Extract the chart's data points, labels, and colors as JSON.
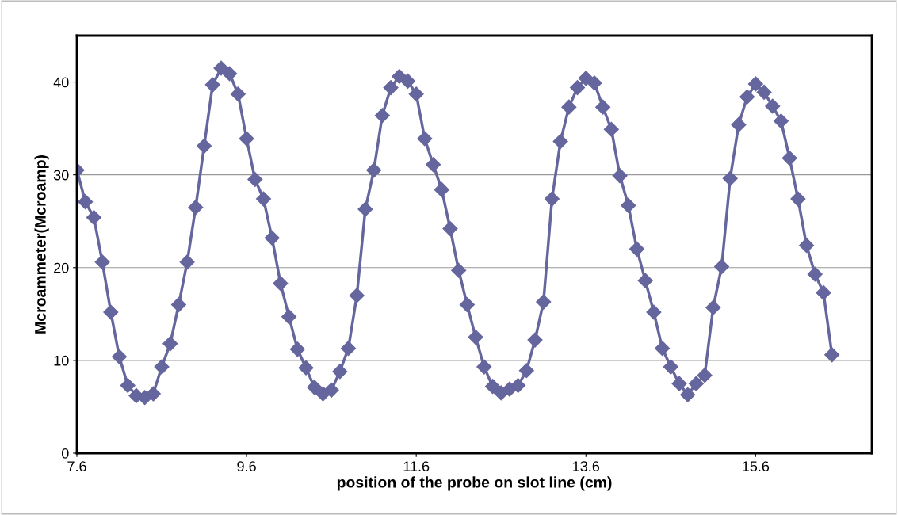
{
  "chart_data": {
    "type": "line",
    "xlabel": "position of the probe on slot line (cm)",
    "ylabel": "Mcroammeter(Mcroamp)",
    "xlim": [
      7.6,
      16.97
    ],
    "xticks": [
      7.6,
      9.6,
      11.6,
      13.6,
      15.6
    ],
    "ylim": [
      0,
      45
    ],
    "yticks": [
      0,
      10,
      20,
      30,
      40
    ],
    "grid": "y",
    "marker": "diamond",
    "line_style": "solid",
    "legend": false,
    "x": [
      7.6,
      7.7,
      7.8,
      7.9,
      8.0,
      8.1,
      8.2,
      8.3,
      8.4,
      8.5,
      8.6,
      8.7,
      8.8,
      8.9,
      9.0,
      9.1,
      9.2,
      9.3,
      9.4,
      9.5,
      9.6,
      9.7,
      9.8,
      9.9,
      10.0,
      10.1,
      10.2,
      10.3,
      10.4,
      10.5,
      10.6,
      10.7,
      10.8,
      10.9,
      11.0,
      11.1,
      11.2,
      11.3,
      11.4,
      11.5,
      11.6,
      11.7,
      11.8,
      11.9,
      12.0,
      12.1,
      12.2,
      12.3,
      12.4,
      12.5,
      12.6,
      12.7,
      12.8,
      12.9,
      13.0,
      13.1,
      13.2,
      13.3,
      13.4,
      13.5,
      13.6,
      13.7,
      13.8,
      13.9,
      14.0,
      14.1,
      14.2,
      14.3,
      14.4,
      14.5,
      14.6,
      14.7,
      14.8,
      14.9,
      15.0,
      15.1,
      15.2,
      15.3,
      15.4,
      15.5,
      15.6,
      15.7,
      15.8,
      15.9,
      16.0,
      16.1,
      16.2,
      16.3,
      16.4,
      16.5
    ],
    "series": [
      {
        "color": "#66669e",
        "values": [
          30.5,
          27.1,
          25.4,
          20.6,
          15.2,
          10.4,
          7.3,
          6.2,
          6.0,
          6.4,
          9.3,
          11.8,
          16.0,
          20.6,
          26.5,
          33.1,
          39.7,
          41.5,
          40.9,
          38.7,
          33.9,
          29.5,
          27.4,
          23.2,
          18.3,
          14.7,
          11.2,
          9.2,
          7.1,
          6.4,
          6.8,
          8.8,
          11.3,
          17.0,
          26.3,
          30.5,
          36.4,
          39.4,
          40.6,
          40.1,
          38.7,
          33.9,
          31.1,
          28.4,
          24.2,
          19.7,
          16.0,
          12.5,
          9.3,
          7.2,
          6.5,
          6.9,
          7.3,
          8.9,
          12.2,
          16.3,
          27.4,
          33.6,
          37.3,
          39.4,
          40.4,
          39.9,
          37.3,
          34.9,
          29.9,
          26.7,
          22.0,
          18.6,
          15.2,
          11.3,
          9.3,
          7.5,
          6.3,
          7.5,
          8.4,
          15.7,
          20.1,
          29.6,
          35.4,
          38.4,
          39.8,
          38.9,
          37.4,
          35.8,
          31.8,
          27.4,
          22.4,
          19.3,
          17.3,
          10.6
        ]
      }
    ]
  }
}
